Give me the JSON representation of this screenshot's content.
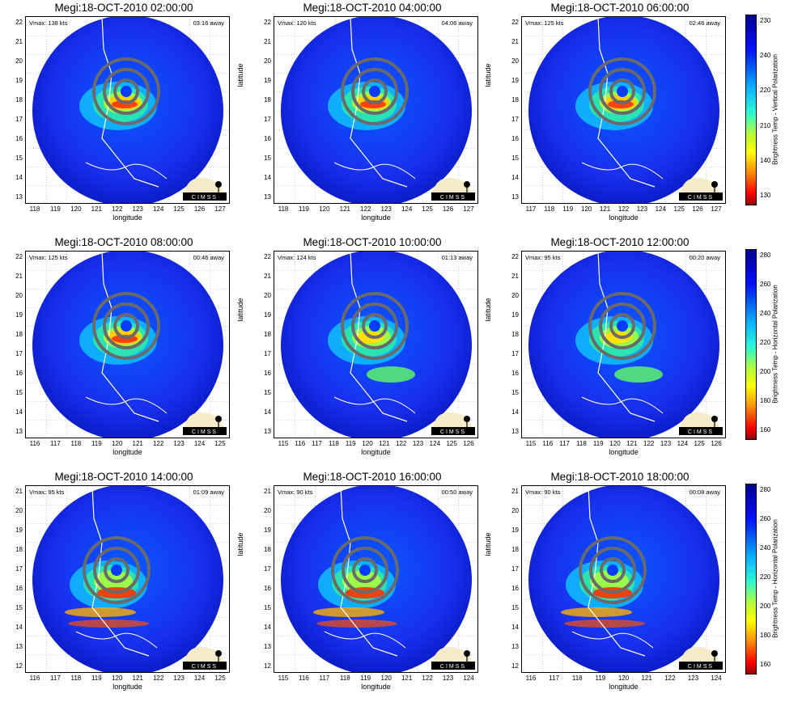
{
  "panels": [
    {
      "title": "Megi:18-OCT-2010 02:00:00",
      "vmax": "Vmax: 138 kts",
      "away": "03:16 away",
      "ylabel": "latitude",
      "xlabel": "longitude",
      "yticks": [
        "22",
        "21",
        "20",
        "19",
        "18",
        "17",
        "16",
        "15",
        "14",
        "13"
      ],
      "xticks": [
        "118",
        "119",
        "120",
        "121",
        "122",
        "123",
        "124",
        "125",
        "126",
        "127"
      ],
      "warm": "high"
    },
    {
      "title": "Megi:18-OCT-2010 04:00:00",
      "vmax": "Vmax: 120 kts",
      "away": "04:06 away",
      "ylabel": "latitude",
      "xlabel": "longitude",
      "yticks": [
        "22",
        "21",
        "20",
        "19",
        "18",
        "17",
        "16",
        "15",
        "14",
        "13"
      ],
      "xticks": [
        "118",
        "119",
        "120",
        "121",
        "122",
        "123",
        "124",
        "125",
        "126",
        "127"
      ],
      "warm": "high"
    },
    {
      "title": "Megi:18-OCT-2010 06:00:00",
      "vmax": "Vmax: 125 kts",
      "away": "02:46 away",
      "ylabel": "latitude",
      "xlabel": "longitude",
      "yticks": [
        "22",
        "21",
        "20",
        "19",
        "18",
        "17",
        "16",
        "15",
        "14",
        "13"
      ],
      "xticks": [
        "117",
        "118",
        "119",
        "120",
        "121",
        "122",
        "123",
        "124",
        "125",
        "126",
        "127"
      ],
      "warm": "high"
    },
    {
      "title": "Megi:18-OCT-2010 08:00:00",
      "vmax": "Vmax: 125 kts",
      "away": "00:46 away",
      "ylabel": "latitude",
      "xlabel": "longitude",
      "yticks": [
        "22",
        "21",
        "20",
        "19",
        "18",
        "17",
        "16",
        "15",
        "14",
        "13"
      ],
      "xticks": [
        "116",
        "117",
        "118",
        "119",
        "120",
        "121",
        "122",
        "123",
        "124",
        "125"
      ],
      "warm": "high"
    },
    {
      "title": "Megi:18-OCT-2010 10:00:00",
      "vmax": "Vmax: 124 kts",
      "away": "01:13 away",
      "ylabel": "latitude",
      "xlabel": "longitude",
      "yticks": [
        "22",
        "21",
        "20",
        "19",
        "18",
        "17",
        "16",
        "15",
        "14",
        "13"
      ],
      "xticks": [
        "115",
        "116",
        "117",
        "118",
        "119",
        "120",
        "121",
        "122",
        "123",
        "124",
        "125",
        "126"
      ],
      "warm": "mid"
    },
    {
      "title": "Megi:18-OCT-2010 12:00:00",
      "vmax": "Vmax: 95 kts",
      "away": "00:20 away",
      "ylabel": "latitude",
      "xlabel": "longitude",
      "yticks": [
        "22",
        "21",
        "20",
        "19",
        "18",
        "17",
        "16",
        "15",
        "14",
        "13"
      ],
      "xticks": [
        "115",
        "116",
        "117",
        "118",
        "119",
        "120",
        "121",
        "122",
        "123",
        "124",
        "125",
        "126"
      ],
      "warm": "mid"
    },
    {
      "title": "Megi:18-OCT-2010 14:00:00",
      "vmax": "Vmax: 95 kts",
      "away": "01:09 away",
      "ylabel": "latitude",
      "xlabel": "longitude",
      "yticks": [
        "21",
        "20",
        "19",
        "18",
        "17",
        "16",
        "15",
        "14",
        "13",
        "12"
      ],
      "xticks": [
        "116",
        "117",
        "118",
        "119",
        "120",
        "121",
        "122",
        "123",
        "124",
        "125"
      ],
      "warm": "low"
    },
    {
      "title": "Megi:18-OCT-2010 16:00:00",
      "vmax": "Vmax: 90 kts",
      "away": "00:50 away",
      "ylabel": "latitude",
      "xlabel": "longitude",
      "yticks": [
        "21",
        "20",
        "19",
        "18",
        "17",
        "16",
        "15",
        "14",
        "13",
        "12"
      ],
      "xticks": [
        "115",
        "116",
        "117",
        "118",
        "119",
        "120",
        "121",
        "122",
        "123",
        "124"
      ],
      "warm": "low"
    },
    {
      "title": "Megi:18-OCT-2010 18:00:00",
      "vmax": "Vmax: 90 kts",
      "away": "00:08 away",
      "ylabel": "latitude",
      "xlabel": "longitude",
      "yticks": [
        "21",
        "20",
        "19",
        "18",
        "17",
        "16",
        "15",
        "14",
        "13",
        "12"
      ],
      "xticks": [
        "116",
        "117",
        "118",
        "119",
        "120",
        "121",
        "122",
        "123",
        "124"
      ],
      "warm": "low"
    }
  ],
  "colorbars": [
    {
      "label": "Brightness Temp - Vertical Polarization",
      "ticks": [
        "230",
        "240",
        "220",
        "210",
        "140",
        "130"
      ]
    },
    {
      "label": "Brightness Temp - Horizontal Polarization",
      "ticks": [
        "280",
        "260",
        "240",
        "220",
        "200",
        "180",
        "160"
      ]
    },
    {
      "label": "Brightness Temp - Horizontal Polarization",
      "ticks": [
        "280",
        "260",
        "240",
        "220",
        "200",
        "180",
        "160"
      ]
    }
  ],
  "logo_text": "CIMSS",
  "colors": {
    "ring": "#6a6a6a",
    "background_blue": "#1030ff",
    "coast": "#ffffff"
  }
}
